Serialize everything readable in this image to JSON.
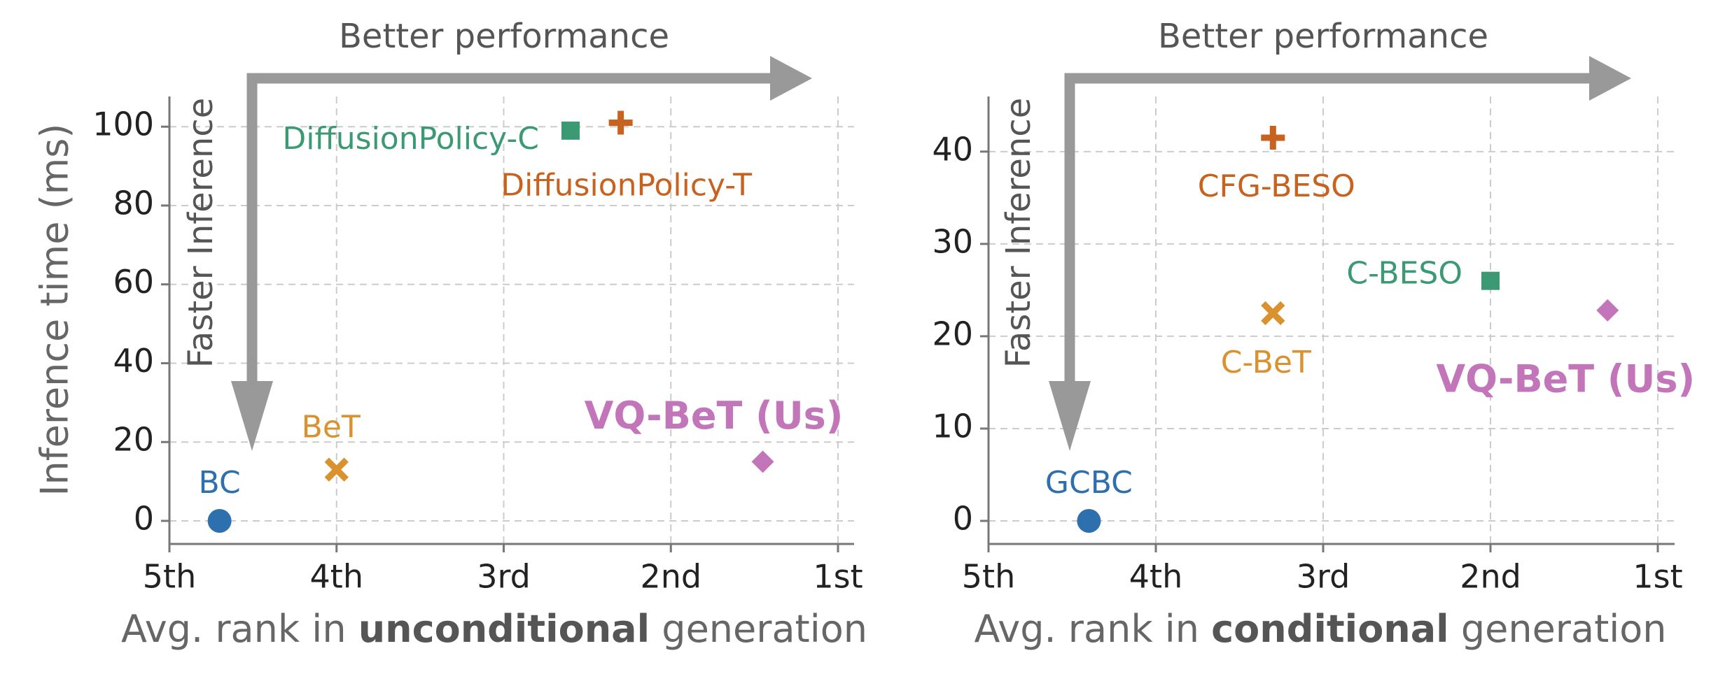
{
  "y_axis_label": "Inference time (ms)",
  "chart_data": [
    {
      "type": "scatter",
      "direction_labels": {
        "horizontal": "Better performance",
        "vertical": "Faster Inference"
      },
      "xlabel_prefix": "Avg. rank in ",
      "xlabel_bold": "unconditional",
      "xlabel_suffix": " generation",
      "x_ticks": [
        "5th",
        "4th",
        "3rd",
        "2nd",
        "1st"
      ],
      "xlim": [
        5,
        1
      ],
      "y_ticks": [
        0,
        20,
        40,
        60,
        80,
        100
      ],
      "ylim": [
        0,
        105
      ],
      "grid": true,
      "points": [
        {
          "label": "BC",
          "x": 4.7,
          "y": 0,
          "marker": "circle",
          "color": "#2e6fad",
          "bold": false
        },
        {
          "label": "BeT",
          "x": 4.0,
          "y": 13,
          "marker": "x",
          "color": "#d9922e",
          "bold": false
        },
        {
          "label": "DiffusionPolicy-C",
          "x": 2.6,
          "y": 99,
          "marker": "square",
          "color": "#3b9a74",
          "bold": false
        },
        {
          "label": "DiffusionPolicy-T",
          "x": 2.3,
          "y": 101,
          "marker": "plus",
          "color": "#c8621f",
          "bold": false
        },
        {
          "label": "VQ-BeT (Us)",
          "x": 1.45,
          "y": 15,
          "marker": "diamond",
          "color": "#c275b9",
          "bold": true
        }
      ]
    },
    {
      "type": "scatter",
      "direction_labels": {
        "horizontal": "Better performance",
        "vertical": "Faster Inference"
      },
      "xlabel_prefix": "Avg. rank in ",
      "xlabel_bold": "conditional",
      "xlabel_suffix": " generation",
      "x_ticks": [
        "5th",
        "4th",
        "3rd",
        "2nd",
        "1st"
      ],
      "xlim": [
        5,
        1
      ],
      "y_ticks": [
        0,
        10,
        20,
        30,
        40
      ],
      "ylim": [
        0,
        44
      ],
      "grid": true,
      "points": [
        {
          "label": "GCBC",
          "x": 4.4,
          "y": 0,
          "marker": "circle",
          "color": "#2e6fad",
          "bold": false
        },
        {
          "label": "CFG-BESO",
          "x": 3.3,
          "y": 41.5,
          "marker": "plus",
          "color": "#c8621f",
          "bold": false
        },
        {
          "label": "C-BESO",
          "x": 2.0,
          "y": 26,
          "marker": "square",
          "color": "#3b9a74",
          "bold": false
        },
        {
          "label": "C-BeT",
          "x": 3.3,
          "y": 22.5,
          "marker": "x",
          "color": "#d9922e",
          "bold": false
        },
        {
          "label": "VQ-BeT (Us)",
          "x": 1.3,
          "y": 22.8,
          "marker": "diamond",
          "color": "#c275b9",
          "bold": true
        }
      ]
    }
  ]
}
